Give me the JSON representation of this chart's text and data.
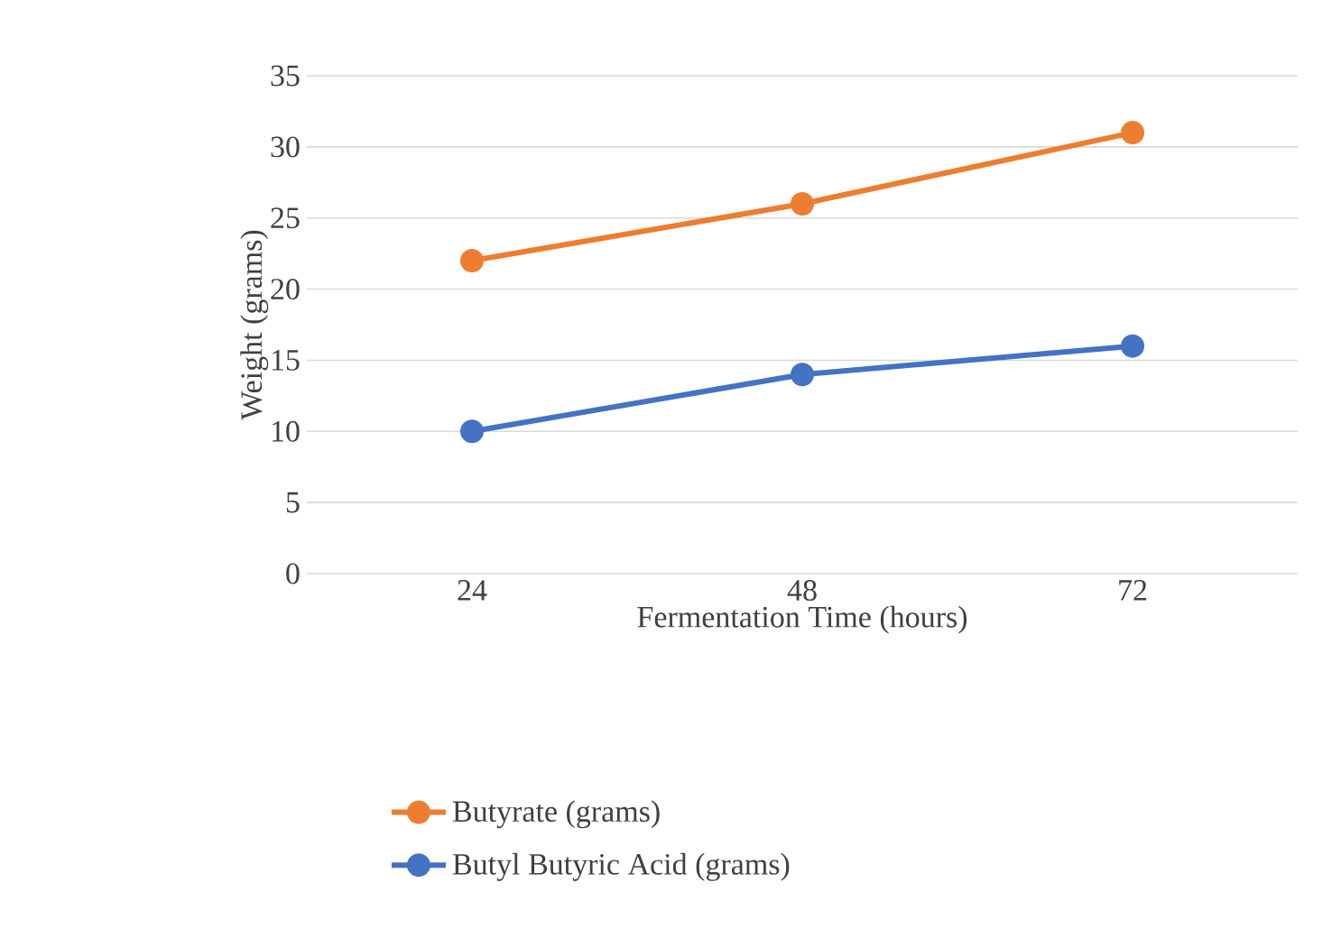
{
  "chart_data": {
    "type": "line",
    "xlabel": "Fermentation Time (hours)",
    "ylabel": "Weight (grams)",
    "categories": [
      "24",
      "48",
      "72"
    ],
    "series": [
      {
        "name": "Butyrate (grams)",
        "color": "#ed7d31",
        "values": [
          22,
          26,
          31
        ]
      },
      {
        "name": "Butyl Butyric Acid (grams)",
        "color": "#4472c4",
        "values": [
          10,
          14,
          16
        ]
      }
    ],
    "ylim": [
      0,
      35
    ],
    "yticks": [
      0,
      5,
      10,
      15,
      20,
      25,
      30,
      35
    ],
    "grid": "y",
    "legend": "bottom",
    "marker": "circle",
    "line_style": "solid"
  }
}
